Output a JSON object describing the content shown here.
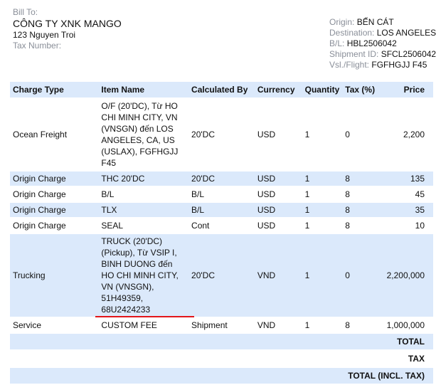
{
  "bill_to": {
    "label": "Bill To:",
    "company": "CÔNG TY XNK MANGO",
    "address": "123 Nguyen Troi",
    "tax_label": "Tax Number:"
  },
  "shipment": {
    "origin_label": "Origin:",
    "origin": "BẾN CÁT",
    "destination_label": "Destination:",
    "destination": "LOS ANGELES",
    "bl_label": "B/L:",
    "bl": "HBL2506042",
    "shipment_id_label": "Shipment ID:",
    "shipment_id": "SFCL2506042",
    "vsl_label": "Vsl./Flight:",
    "vsl": "FGFHGJJ F45"
  },
  "table": {
    "headers": [
      "Charge Type",
      "Item Name",
      "Calculated By",
      "Currency",
      "Quantity",
      "Tax (%)",
      "Price"
    ],
    "rows": [
      {
        "charge": "Ocean Freight",
        "item": [
          "O/F (20'DC),  Từ HO",
          "CHI MINH CITY, VN",
          "(VNSGN) đến LOS",
          "ANGELES, CA, US",
          "(USLAX),  FGFHGJJ",
          "F45"
        ],
        "calc": "20'DC",
        "currency": "USD",
        "qty": "1",
        "tax": "0",
        "price": "2,200"
      },
      {
        "charge": "Origin Charge",
        "item": [
          "THC 20'DC"
        ],
        "calc": "20'DC",
        "currency": "USD",
        "qty": "1",
        "tax": "8",
        "price": "135"
      },
      {
        "charge": "Origin Charge",
        "item": [
          "B/L"
        ],
        "calc": "B/L",
        "currency": "USD",
        "qty": "1",
        "tax": "8",
        "price": "45"
      },
      {
        "charge": "Origin Charge",
        "item": [
          "TLX"
        ],
        "calc": "B/L",
        "currency": "USD",
        "qty": "1",
        "tax": "8",
        "price": "35"
      },
      {
        "charge": "Origin Charge",
        "item": [
          "SEAL"
        ],
        "calc": "Cont",
        "currency": "USD",
        "qty": "1",
        "tax": "8",
        "price": "10"
      },
      {
        "charge": "Trucking",
        "item": [
          "TRUCK (20'DC)",
          "(Pickup),  Từ VSIP I,",
          "BINH DUONG đến",
          "HO CHI MINH CITY,",
          "VN (VNSGN),",
          "51H49359,",
          "68U2424233"
        ],
        "calc": "20'DC",
        "currency": "VND",
        "qty": "1",
        "tax": "0",
        "price": "2,200,000"
      },
      {
        "charge": "Service",
        "item": [
          "CUSTOM FEE"
        ],
        "calc": "Shipment",
        "currency": "VND",
        "qty": "1",
        "tax": "8",
        "price": "1,000,000"
      }
    ],
    "totals": [
      "TOTAL",
      "TAX",
      "TOTAL (INCL. TAX)"
    ]
  },
  "colors": {
    "row_alt": "#dbe9fb",
    "annotation": "#e3161a"
  }
}
